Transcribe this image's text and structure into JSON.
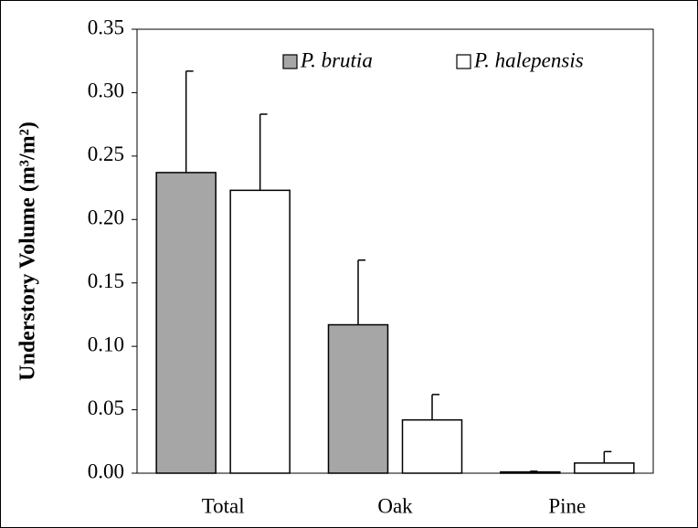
{
  "chart_data": {
    "type": "bar",
    "y_label": "Understory Volume (m³/m²)",
    "categories": [
      "Total",
      "Oak",
      "Pine"
    ],
    "series": [
      {
        "name": "P. brutia",
        "color": "#a6a6a6",
        "values": [
          0.237,
          0.117,
          0.001
        ],
        "errors": [
          0.08,
          0.051,
          0.0005
        ]
      },
      {
        "name": "P. halepensis",
        "color": "#ffffff",
        "values": [
          0.223,
          0.042,
          0.008
        ],
        "errors": [
          0.06,
          0.02,
          0.009
        ]
      }
    ],
    "ylim": [
      0,
      0.35
    ],
    "yticks": [
      {
        "value": 0,
        "label": "0.00"
      },
      {
        "value": 0.05,
        "label": "0.05"
      },
      {
        "value": 0.1,
        "label": "0.10"
      },
      {
        "value": 0.15,
        "label": "0.15"
      },
      {
        "value": 0.2,
        "label": "0.20"
      },
      {
        "value": 0.25,
        "label": "0.25"
      },
      {
        "value": 0.3,
        "label": "0.30"
      },
      {
        "value": 0.35,
        "label": "0.35"
      }
    ],
    "grid": false,
    "legend": "top"
  }
}
